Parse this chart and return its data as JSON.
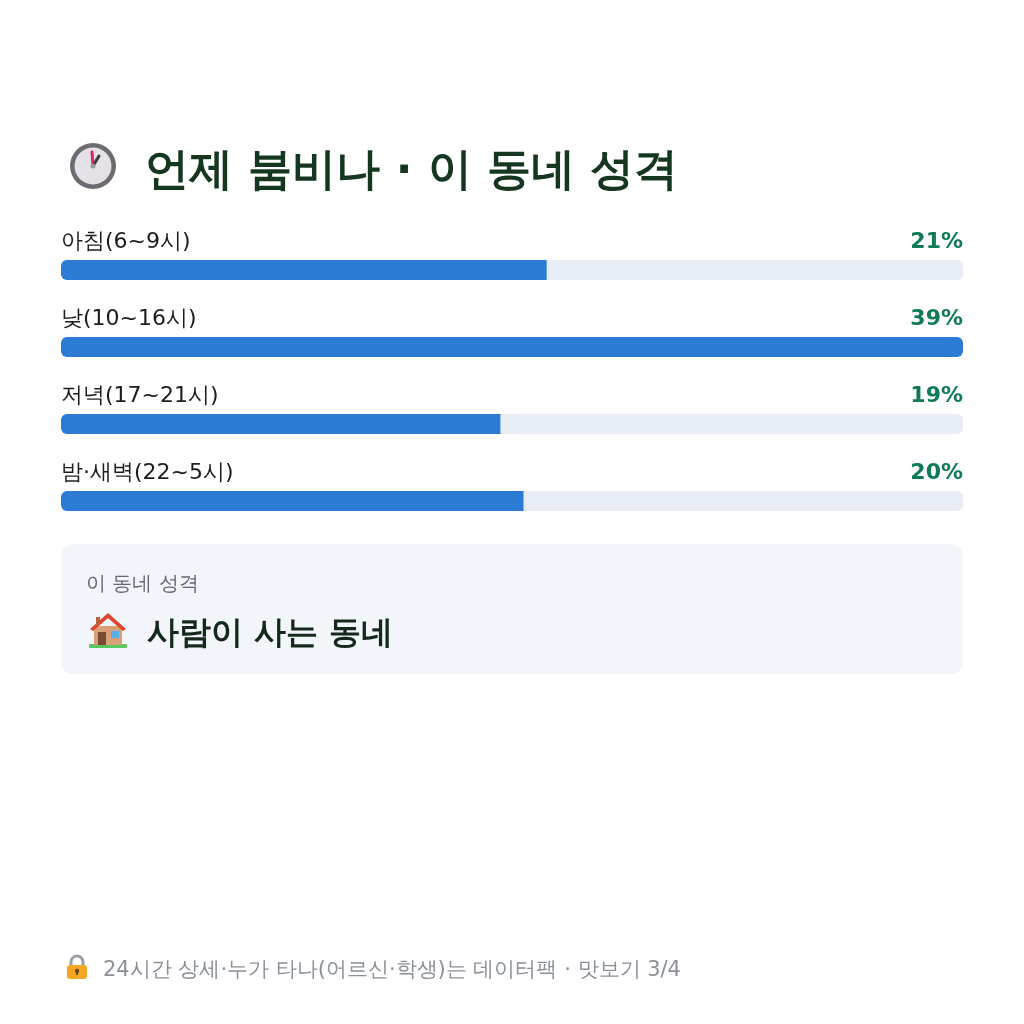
{
  "chart_data": {
    "type": "bar",
    "orientation": "horizontal",
    "title": "언제 붐비나 · 이 동네 성격",
    "categories": [
      "아침(6~9시)",
      "낮(10~16시)",
      "저녁(17~21시)",
      "밤·새벽(22~5시)"
    ],
    "values": [
      21,
      39,
      19,
      20
    ],
    "color": "#2b7bd4",
    "value_labels": [
      "21%",
      "39%",
      "19%",
      "20%"
    ],
    "annotations": [
      "이 동네 성격",
      "사람이 사는 동네",
      "24시간 상세·누가 타나(어르신·학생)는 데이터팩 · 맛보기 3/4"
    ]
  }
}
